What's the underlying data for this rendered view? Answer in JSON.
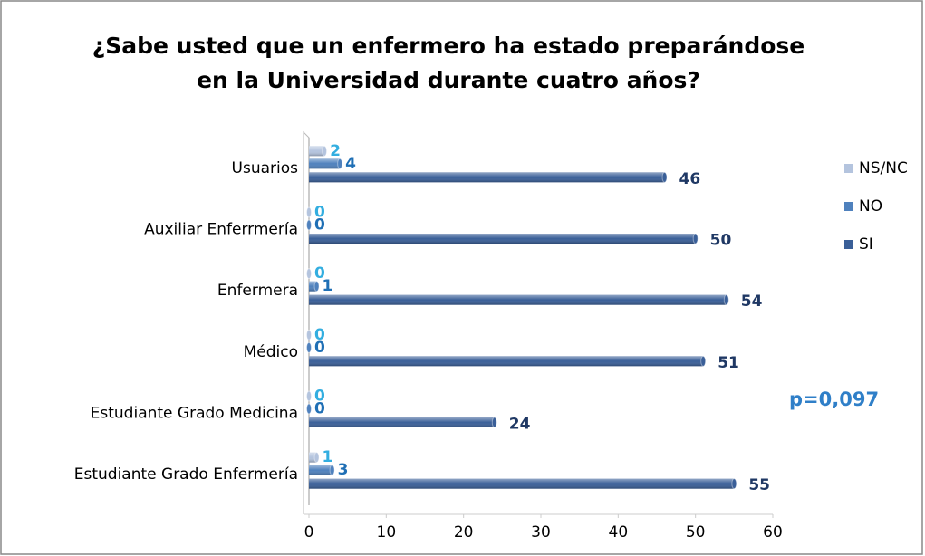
{
  "chart_data": {
    "type": "hbar",
    "title": [
      "¿Sabe usted que un enfermero ha estado preparándose",
      "en la Universidad durante cuatro años?"
    ],
    "categories": [
      "Usuarios",
      "Auxiliar Enferrmería",
      "Enfermera",
      "Médico",
      "Estudiante Grado Medicina",
      "Estudiante Grado Enfermería"
    ],
    "series": [
      {
        "name": "NS/NC",
        "color": "#b4c4de",
        "label_color": "#33aee0",
        "values": [
          2,
          0,
          0,
          0,
          0,
          1
        ]
      },
      {
        "name": "NO",
        "color": "#4f81bd",
        "label_color": "#1f6fb5",
        "values": [
          4,
          0,
          1,
          0,
          0,
          3
        ]
      },
      {
        "name": "SI",
        "color": "#3a5f98",
        "label_color": "#1f3864",
        "values": [
          46,
          50,
          54,
          51,
          24,
          55
        ]
      }
    ],
    "xlim": [
      0,
      60
    ],
    "xticks": [
      0,
      10,
      20,
      30,
      40,
      50,
      60
    ],
    "legend": "right",
    "annotation": "p=0,097"
  }
}
